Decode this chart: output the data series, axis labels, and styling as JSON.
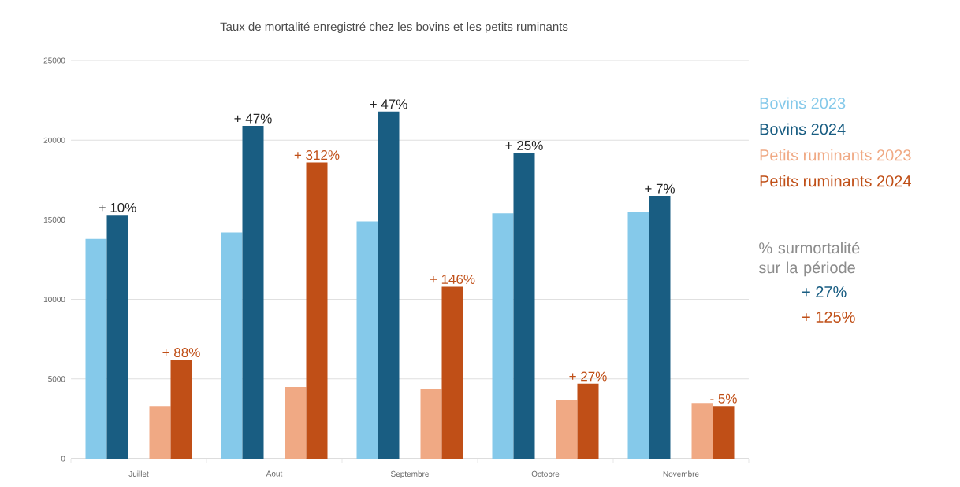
{
  "chart_data": {
    "type": "bar",
    "title": "Taux de mortalité enregistré chez les bovins et les petits ruminants",
    "categories": [
      "Juillet",
      "Aout",
      "Septembre",
      "Octobre",
      "Novembre"
    ],
    "series": [
      {
        "name": "Bovins 2023",
        "color": "#85c9ea",
        "values": [
          13800,
          14200,
          14900,
          15400,
          15500
        ]
      },
      {
        "name": "Bovins 2024",
        "color": "#195d82",
        "values": [
          15300,
          20900,
          21800,
          19200,
          16500
        ]
      },
      {
        "name": "Petits ruminants 2023",
        "color": "#f0a984",
        "values": [
          3300,
          4500,
          4400,
          3700,
          3500
        ]
      },
      {
        "name": "Petits ruminants 2024",
        "color": "#c04f17",
        "values": [
          6200,
          18600,
          10800,
          4700,
          3300
        ]
      }
    ],
    "ylim": [
      0,
      25000
    ],
    "yticks": [
      0,
      5000,
      10000,
      15000,
      20000,
      25000
    ],
    "grid": "y",
    "legend": "right",
    "annotations": [
      "% surmortalité sur la période",
      "+ 27%",
      "+ 125%",
      "+ 10%",
      "+ 47%",
      "+ 47%",
      "+ 25%",
      "+ 7%",
      "+ 88%",
      "+ 312%",
      "+ 146%",
      "+ 27%",
      "- 5%"
    ]
  }
}
